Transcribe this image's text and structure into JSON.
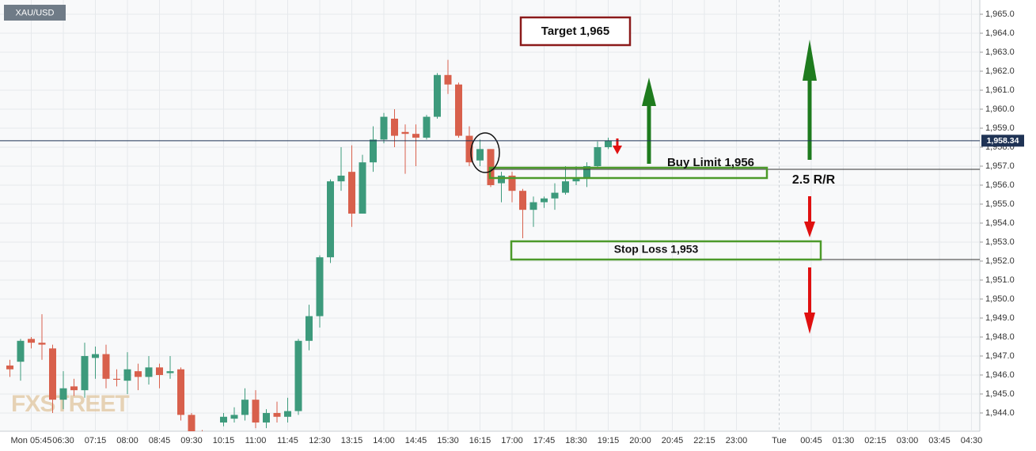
{
  "chart_data": {
    "type": "candlestick",
    "symbol": "XAU/USD",
    "watermark": "FXSTREET",
    "up_color": "#3d9a7c",
    "down_color": "#d8604c",
    "categories": [
      null,
      null,
      null,
      "Mon 05:45",
      null,
      null,
      "06:30",
      null,
      null,
      "07:15",
      null,
      null,
      "08:00",
      null,
      null,
      "08:45",
      null,
      null,
      "09:30",
      null,
      null,
      "10:15",
      null,
      null,
      "11:00",
      null,
      null,
      "11:45",
      null,
      null,
      "12:30",
      null,
      null,
      "13:15",
      null,
      null,
      "14:00",
      null,
      null,
      "14:45",
      null,
      null,
      "15:30",
      null,
      null,
      "16:15",
      null,
      null,
      "17:00",
      null,
      null,
      "17:45",
      null,
      null,
      "18:30",
      null,
      null,
      "19:15",
      null,
      null,
      "20:00",
      null,
      null,
      "20:45",
      null,
      null,
      "22:15",
      null,
      null,
      "23:00",
      null,
      null,
      null,
      "Tue",
      null,
      null,
      "00:45",
      null,
      null,
      "01:30",
      null,
      null,
      "02:15",
      null,
      null,
      "03:00",
      null,
      null,
      "03:45",
      null,
      null,
      "04:30"
    ],
    "open": [
      null,
      1946.5,
      1946.7,
      1947.9,
      1947.7,
      1947.4,
      1944.7,
      1945.4,
      1945.2,
      1946.9,
      1947.1,
      1945.8,
      1945.7,
      1946.2,
      1945.9,
      1946.4,
      1946.1,
      1946.3,
      1943.9,
      1943.0,
      1942.7,
      1943.5,
      1943.7,
      1943.9,
      1944.7,
      1943.5,
      1944.0,
      1943.8,
      1944.1,
      1947.8,
      1949.1,
      1952.2,
      1956.2,
      1956.7,
      1954.5,
      1957.2,
      1958.4,
      1959.5,
      1958.8,
      1958.7,
      1958.5,
      1959.6,
      1961.8,
      1961.3,
      1958.6,
      1957.3,
      1957.9,
      1956.1,
      1956.5,
      1955.7,
      1954.7,
      1955.1,
      1955.3,
      1955.6,
      1956.2,
      1956.4,
      1957.0,
      1958.0,
      null,
      null,
      null,
      null,
      null,
      null,
      null,
      null,
      null,
      null,
      null,
      null,
      null,
      null,
      null,
      null,
      null,
      null,
      null,
      null,
      null,
      null,
      null,
      null,
      null,
      null,
      null,
      null,
      null,
      null,
      null,
      null,
      null,
      null
    ],
    "high": [
      null,
      1946.8,
      1947.9,
      1948.0,
      1949.2,
      1947.6,
      1946.2,
      1945.8,
      1947.7,
      1947.5,
      1947.6,
      1946.3,
      1947.2,
      1946.6,
      1947.0,
      1946.6,
      1947.0,
      1946.4,
      1944.0,
      1943.1,
      1943.0,
      1944.0,
      1944.3,
      1945.3,
      1945.2,
      1944.2,
      1944.6,
      1944.8,
      1947.9,
      1949.7,
      1952.3,
      1956.3,
      1958.0,
      1958.1,
      1957.6,
      1959.1,
      1959.8,
      1960.0,
      1959.2,
      1959.2,
      1959.7,
      1961.9,
      1962.6,
      1961.4,
      1959.1,
      1958.4,
      1957.9,
      1956.7,
      1956.7,
      1955.8,
      1955.4,
      1955.4,
      1956.1,
      1957.0,
      1957.0,
      1957.2,
      1958.3,
      1958.5,
      null,
      null,
      null,
      null,
      null,
      null,
      null,
      null,
      null,
      null,
      null,
      null,
      null,
      null,
      null,
      null,
      null,
      null,
      null,
      null,
      null,
      null,
      null,
      null,
      null,
      null,
      null,
      null,
      null,
      null,
      null,
      null,
      null,
      null
    ],
    "low": [
      null,
      1945.9,
      1945.7,
      1947.4,
      1946.8,
      1944.0,
      1944.2,
      1944.9,
      1944.8,
      1945.8,
      1945.3,
      1945.4,
      1945.0,
      1945.2,
      1945.5,
      1945.3,
      1945.8,
      1943.6,
      1942.8,
      1942.5,
      1942.5,
      1943.3,
      1943.5,
      1943.6,
      1943.2,
      1943.2,
      1943.5,
      1943.5,
      1943.9,
      1947.3,
      1948.5,
      1951.9,
      1955.7,
      1953.8,
      1954.5,
      1956.7,
      1958.2,
      1958.0,
      1956.6,
      1957.0,
      1958.4,
      1959.5,
      1960.8,
      1958.5,
      1957.0,
      1957.0,
      1955.9,
      1955.1,
      1955.1,
      1953.2,
      1953.8,
      1954.8,
      1954.7,
      1955.5,
      1956.0,
      1955.9,
      1956.9,
      1957.9,
      null,
      null,
      null,
      null,
      null,
      null,
      null,
      null,
      null,
      null,
      null,
      null,
      null,
      null,
      null,
      null,
      null,
      null,
      null,
      null,
      null,
      null,
      null,
      null,
      null,
      null,
      null,
      null,
      null,
      null,
      null,
      null,
      null,
      null
    ],
    "close": [
      null,
      1946.3,
      1947.8,
      1947.7,
      1947.6,
      1944.7,
      1945.3,
      1945.2,
      1947.0,
      1947.1,
      1945.8,
      1945.75,
      1946.3,
      1945.9,
      1946.4,
      1946.0,
      1946.2,
      1943.9,
      1943.0,
      1942.7,
      1942.9,
      1943.8,
      1943.9,
      1944.7,
      1943.5,
      1944.0,
      1943.8,
      1944.1,
      1947.8,
      1949.1,
      1952.2,
      1956.2,
      1956.5,
      1954.5,
      1957.2,
      1958.4,
      1959.6,
      1958.6,
      1958.7,
      1958.5,
      1959.6,
      1961.8,
      1961.3,
      1958.6,
      1957.2,
      1957.9,
      1956.0,
      1956.5,
      1955.7,
      1954.7,
      1955.1,
      1955.3,
      1955.6,
      1956.2,
      1956.4,
      1957.0,
      1958.0,
      1958.34,
      null,
      null,
      null,
      null,
      null,
      null,
      null,
      null,
      null,
      null,
      null,
      null,
      null,
      null,
      null,
      null,
      null,
      null,
      null,
      null,
      null,
      null,
      null,
      null,
      null,
      null,
      null,
      null,
      null,
      null,
      null,
      null,
      null,
      null
    ],
    "ylim": [
      1943.04,
      1965.75
    ],
    "yticks": [
      {
        "value": 1944,
        "label": "1,944.0"
      },
      {
        "value": 1945,
        "label": "1,945.0"
      },
      {
        "value": 1946,
        "label": "1,946.0"
      },
      {
        "value": 1947,
        "label": "1,947.0"
      },
      {
        "value": 1948,
        "label": "1,948.0"
      },
      {
        "value": 1949,
        "label": "1,949.0"
      },
      {
        "value": 1950,
        "label": "1,950.0"
      },
      {
        "value": 1951,
        "label": "1,951.0"
      },
      {
        "value": 1952,
        "label": "1,952.0"
      },
      {
        "value": 1953,
        "label": "1,953.0"
      },
      {
        "value": 1954,
        "label": "1,954.0"
      },
      {
        "value": 1955,
        "label": "1,955.0"
      },
      {
        "value": 1956,
        "label": "1,956.0"
      },
      {
        "value": 1957,
        "label": "1,957.0"
      },
      {
        "value": 1958,
        "label": "1,958.0"
      },
      {
        "value": 1959,
        "label": "1,959.0"
      },
      {
        "value": 1960,
        "label": "1,960.0"
      },
      {
        "value": 1961,
        "label": "1,961.0"
      },
      {
        "value": 1962,
        "label": "1,962.0"
      },
      {
        "value": 1963,
        "label": "1,963.0"
      },
      {
        "value": 1964,
        "label": "1,964.0"
      },
      {
        "value": 1965,
        "label": "1,965.0"
      }
    ],
    "grid": true,
    "last_price": {
      "value": 1958.34,
      "label": "1,958.34"
    },
    "annotations": [
      "Target 1,965",
      "Buy Limit 1,956",
      "Stop Loss 1,953",
      "2.5 R/R"
    ]
  }
}
